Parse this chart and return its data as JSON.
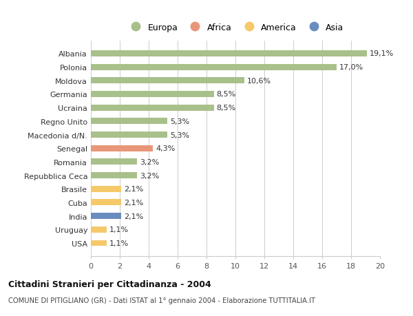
{
  "categories": [
    "Albania",
    "Polonia",
    "Moldova",
    "Germania",
    "Ucraina",
    "Regno Unito",
    "Macedonia d/N.",
    "Senegal",
    "Romania",
    "Repubblica Ceca",
    "Brasile",
    "Cuba",
    "India",
    "Uruguay",
    "USA"
  ],
  "values": [
    19.1,
    17.0,
    10.6,
    8.5,
    8.5,
    5.3,
    5.3,
    4.3,
    3.2,
    3.2,
    2.1,
    2.1,
    2.1,
    1.1,
    1.1
  ],
  "labels": [
    "19,1%",
    "17,0%",
    "10,6%",
    "8,5%",
    "8,5%",
    "5,3%",
    "5,3%",
    "4,3%",
    "3,2%",
    "3,2%",
    "2,1%",
    "2,1%",
    "2,1%",
    "1,1%",
    "1,1%"
  ],
  "colors": [
    "#a8c08a",
    "#a8c08a",
    "#a8c08a",
    "#a8c08a",
    "#a8c08a",
    "#a8c08a",
    "#a8c08a",
    "#e8967a",
    "#a8c08a",
    "#a8c08a",
    "#f5c96a",
    "#f5c96a",
    "#6a8dbf",
    "#f5c96a",
    "#f5c96a"
  ],
  "legend_labels": [
    "Europa",
    "Africa",
    "America",
    "Asia"
  ],
  "legend_colors": [
    "#a8c08a",
    "#e8967a",
    "#f5c96a",
    "#6a8dbf"
  ],
  "title": "Cittadini Stranieri per Cittadinanza - 2004",
  "subtitle": "COMUNE DI PITIGLIANO (GR) - Dati ISTAT al 1° gennaio 2004 - Elaborazione TUTTITALIA.IT",
  "xlim": [
    0,
    20
  ],
  "xticks": [
    0,
    2,
    4,
    6,
    8,
    10,
    12,
    14,
    16,
    18,
    20
  ],
  "background_color": "#ffffff",
  "grid_color": "#cccccc",
  "bar_height": 0.45
}
